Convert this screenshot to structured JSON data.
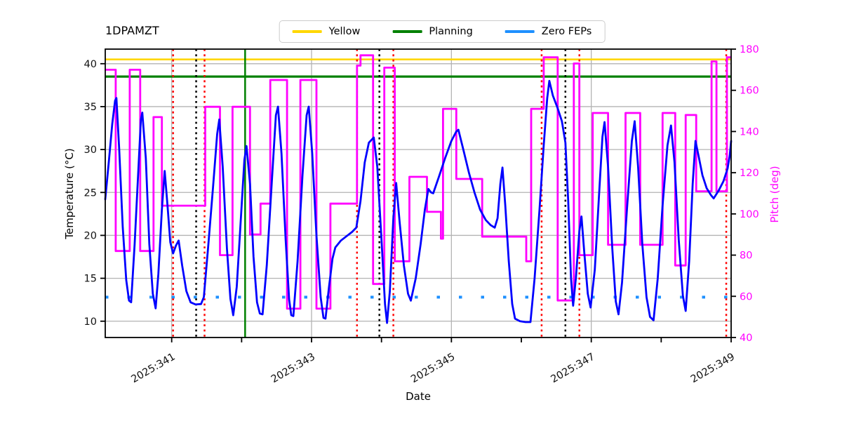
{
  "chart_data": {
    "type": "line",
    "title": "1DPAMZT",
    "xlabel": "Date",
    "ylabel_left": "Temperature (°C)",
    "ylabel_right": "Pitch (deg)",
    "xlim": [
      340.05,
      349.0
    ],
    "ylim_left": [
      8.1,
      41.7
    ],
    "ylim_right": [
      40,
      180
    ],
    "grid": true,
    "colors": {
      "grid": "#b3b3b3",
      "spine": "#000000",
      "tick_label_left": "#111111",
      "tick_label_right": "#ff00ff",
      "temperature": "#0000ff",
      "pitch": "#ff00ff",
      "yellow_limit": "#ffd700",
      "planning_limit": "#008000",
      "zero_feps": "#1e90ff",
      "red_event": "#ff0000",
      "black_event": "#000000",
      "green_event": "#008000"
    },
    "x_ticks_major": [
      {
        "value": 341,
        "label": "2025:341"
      },
      {
        "value": 343,
        "label": "2025:343"
      },
      {
        "value": 345,
        "label": "2025:345"
      },
      {
        "value": 347,
        "label": "2025:347"
      },
      {
        "value": 349,
        "label": "2025:349"
      }
    ],
    "x_ticks_minor": [
      342,
      344,
      346,
      348
    ],
    "x_grid": [
      341,
      343,
      345,
      347,
      349
    ],
    "y_ticks_left": [
      10,
      15,
      20,
      25,
      30,
      35,
      40
    ],
    "y_ticks_right": [
      40,
      60,
      80,
      100,
      120,
      140,
      160,
      180
    ],
    "legend": {
      "items": [
        {
          "label": "Yellow",
          "color": "#ffd700"
        },
        {
          "label": "Planning",
          "color": "#008000"
        },
        {
          "label": "Zero FEPs",
          "color": "#1e90ff"
        }
      ]
    },
    "hlines": [
      {
        "name": "yellow-limit-line",
        "y": 40.5,
        "color": "#ffd700",
        "width": 2.6,
        "dash": ""
      },
      {
        "name": "planning-limit-line",
        "y": 38.5,
        "color": "#008000",
        "width": 3.2,
        "dash": ""
      },
      {
        "name": "zero-feps-line",
        "y": 12.8,
        "color": "#1e90ff",
        "width": 4,
        "dash": "4.5 27"
      }
    ],
    "vlines": [
      {
        "name": "red-event-vline",
        "x": 341.02,
        "color": "#ff0000",
        "style": "dotted"
      },
      {
        "name": "black-event-vline",
        "x": 341.35,
        "color": "#000000",
        "style": "dotted"
      },
      {
        "name": "red-event-vline",
        "x": 341.47,
        "color": "#ff0000",
        "style": "dotted"
      },
      {
        "name": "green-event-vline",
        "x": 342.05,
        "color": "#008000",
        "style": "solid"
      },
      {
        "name": "red-event-vline",
        "x": 343.65,
        "color": "#ff0000",
        "style": "dotted"
      },
      {
        "name": "black-event-vline",
        "x": 343.97,
        "color": "#000000",
        "style": "dotted"
      },
      {
        "name": "red-event-vline",
        "x": 344.17,
        "color": "#ff0000",
        "style": "dotted"
      },
      {
        "name": "red-event-vline",
        "x": 346.29,
        "color": "#ff0000",
        "style": "dotted"
      },
      {
        "name": "black-event-vline",
        "x": 346.63,
        "color": "#000000",
        "style": "dotted"
      },
      {
        "name": "red-event-vline",
        "x": 346.83,
        "color": "#ff0000",
        "style": "dotted"
      },
      {
        "name": "red-event-vline",
        "x": 348.93,
        "color": "#ff0000",
        "style": "dotted"
      }
    ],
    "series": {
      "temperature": {
        "name": "1DPAMZT temperature",
        "color": "#0000ff",
        "width": 2.8,
        "points": [
          [
            340.05,
            24.2
          ],
          [
            340.1,
            28.5
          ],
          [
            340.15,
            33.0
          ],
          [
            340.19,
            35.7
          ],
          [
            340.21,
            36.0
          ],
          [
            340.25,
            30.0
          ],
          [
            340.3,
            21.0
          ],
          [
            340.35,
            14.8
          ],
          [
            340.39,
            12.4
          ],
          [
            340.42,
            12.2
          ],
          [
            340.47,
            19.0
          ],
          [
            340.52,
            27.0
          ],
          [
            340.56,
            33.5
          ],
          [
            340.58,
            34.3
          ],
          [
            340.63,
            29.0
          ],
          [
            340.68,
            19.0
          ],
          [
            340.73,
            13.2
          ],
          [
            340.77,
            11.5
          ],
          [
            340.81,
            15.5
          ],
          [
            340.86,
            23.0
          ],
          [
            340.9,
            27.5
          ],
          [
            340.94,
            23.5
          ],
          [
            340.98,
            19.2
          ],
          [
            341.02,
            17.9
          ],
          [
            341.06,
            18.8
          ],
          [
            341.1,
            19.4
          ],
          [
            341.15,
            16.5
          ],
          [
            341.21,
            13.5
          ],
          [
            341.27,
            12.2
          ],
          [
            341.34,
            11.95
          ],
          [
            341.42,
            12.0
          ],
          [
            341.46,
            12.8
          ],
          [
            341.52,
            18.5
          ],
          [
            341.59,
            25.5
          ],
          [
            341.65,
            31.8
          ],
          [
            341.68,
            33.5
          ],
          [
            341.73,
            28.0
          ],
          [
            341.79,
            18.5
          ],
          [
            341.84,
            12.6
          ],
          [
            341.88,
            10.7
          ],
          [
            341.93,
            14.0
          ],
          [
            341.99,
            22.0
          ],
          [
            342.04,
            28.8
          ],
          [
            342.07,
            30.4
          ],
          [
            342.12,
            26.0
          ],
          [
            342.17,
            17.5
          ],
          [
            342.22,
            12.2
          ],
          [
            342.26,
            10.9
          ],
          [
            342.3,
            10.8
          ],
          [
            342.36,
            16.5
          ],
          [
            342.43,
            26.0
          ],
          [
            342.49,
            34.0
          ],
          [
            342.52,
            35.0
          ],
          [
            342.57,
            29.5
          ],
          [
            342.63,
            19.5
          ],
          [
            342.68,
            12.5
          ],
          [
            342.71,
            10.7
          ],
          [
            342.74,
            10.6
          ],
          [
            342.8,
            17.0
          ],
          [
            342.87,
            27.0
          ],
          [
            342.93,
            34.0
          ],
          [
            342.96,
            35.0
          ],
          [
            343.01,
            29.5
          ],
          [
            343.07,
            20.0
          ],
          [
            343.13,
            12.8
          ],
          [
            343.17,
            10.4
          ],
          [
            343.2,
            10.3
          ],
          [
            343.25,
            14.0
          ],
          [
            343.3,
            17.3
          ],
          [
            343.34,
            18.6
          ],
          [
            343.42,
            19.4
          ],
          [
            343.5,
            19.9
          ],
          [
            343.58,
            20.4
          ],
          [
            343.64,
            20.9
          ],
          [
            343.7,
            24.0
          ],
          [
            343.76,
            28.5
          ],
          [
            343.82,
            30.8
          ],
          [
            343.89,
            31.4
          ],
          [
            343.94,
            28.0
          ],
          [
            344.0,
            19.5
          ],
          [
            344.05,
            12.0
          ],
          [
            344.08,
            9.8
          ],
          [
            344.12,
            13.5
          ],
          [
            344.17,
            22.0
          ],
          [
            344.21,
            26.1
          ],
          [
            344.26,
            21.5
          ],
          [
            344.32,
            16.5
          ],
          [
            344.38,
            13.2
          ],
          [
            344.42,
            12.4
          ],
          [
            344.49,
            15.0
          ],
          [
            344.56,
            19.0
          ],
          [
            344.62,
            23.0
          ],
          [
            344.67,
            25.4
          ],
          [
            344.71,
            25.0
          ],
          [
            344.74,
            24.9
          ],
          [
            344.82,
            26.8
          ],
          [
            344.91,
            29.0
          ],
          [
            345.0,
            31.0
          ],
          [
            345.07,
            32.1
          ],
          [
            345.1,
            32.3
          ],
          [
            345.17,
            30.0
          ],
          [
            345.25,
            27.3
          ],
          [
            345.33,
            25.0
          ],
          [
            345.41,
            23.0
          ],
          [
            345.49,
            21.8
          ],
          [
            345.56,
            21.2
          ],
          [
            345.62,
            20.9
          ],
          [
            345.66,
            22.0
          ],
          [
            345.7,
            26.0
          ],
          [
            345.73,
            27.9
          ],
          [
            345.77,
            23.5
          ],
          [
            345.82,
            17.0
          ],
          [
            345.87,
            12.0
          ],
          [
            345.91,
            10.3
          ],
          [
            345.98,
            10.0
          ],
          [
            346.06,
            9.9
          ],
          [
            346.13,
            9.9
          ],
          [
            346.19,
            15.0
          ],
          [
            346.26,
            23.0
          ],
          [
            346.32,
            30.5
          ],
          [
            346.37,
            36.0
          ],
          [
            346.4,
            38.0
          ],
          [
            346.45,
            36.3
          ],
          [
            346.52,
            34.8
          ],
          [
            346.58,
            33.3
          ],
          [
            346.63,
            30.8
          ],
          [
            346.67,
            24.0
          ],
          [
            346.71,
            15.0
          ],
          [
            346.74,
            11.8
          ],
          [
            346.78,
            15.0
          ],
          [
            346.83,
            20.5
          ],
          [
            346.86,
            22.2
          ],
          [
            346.9,
            18.0
          ],
          [
            346.95,
            13.2
          ],
          [
            346.99,
            11.6
          ],
          [
            347.05,
            16.0
          ],
          [
            347.11,
            24.5
          ],
          [
            347.16,
            31.5
          ],
          [
            347.19,
            33.2
          ],
          [
            347.24,
            28.0
          ],
          [
            347.3,
            18.5
          ],
          [
            347.35,
            12.3
          ],
          [
            347.39,
            10.8
          ],
          [
            347.44,
            14.5
          ],
          [
            347.51,
            23.0
          ],
          [
            347.58,
            31.0
          ],
          [
            347.62,
            33.3
          ],
          [
            347.67,
            28.0
          ],
          [
            347.73,
            19.0
          ],
          [
            347.79,
            12.8
          ],
          [
            347.84,
            10.5
          ],
          [
            347.89,
            10.1
          ],
          [
            347.95,
            15.0
          ],
          [
            348.02,
            23.5
          ],
          [
            348.09,
            30.5
          ],
          [
            348.14,
            32.8
          ],
          [
            348.19,
            28.5
          ],
          [
            348.25,
            19.5
          ],
          [
            348.31,
            13.0
          ],
          [
            348.35,
            11.2
          ],
          [
            348.4,
            17.0
          ],
          [
            348.45,
            26.0
          ],
          [
            348.49,
            31.0
          ],
          [
            348.54,
            29.0
          ],
          [
            348.59,
            27.0
          ],
          [
            348.65,
            25.5
          ],
          [
            348.71,
            24.7
          ],
          [
            348.75,
            24.3
          ],
          [
            348.82,
            25.2
          ],
          [
            348.89,
            26.3
          ],
          [
            348.95,
            27.8
          ],
          [
            348.98,
            29.3
          ],
          [
            349.0,
            31.0
          ]
        ]
      },
      "pitch": {
        "name": "pitch",
        "color": "#ff00ff",
        "width": 2.8,
        "steps": [
          [
            340.05,
            340.2,
            170
          ],
          [
            340.2,
            340.4,
            82
          ],
          [
            340.4,
            340.55,
            170
          ],
          [
            340.55,
            340.74,
            82
          ],
          [
            340.74,
            340.86,
            147
          ],
          [
            340.86,
            341.48,
            104
          ],
          [
            341.48,
            341.69,
            152
          ],
          [
            341.69,
            341.87,
            80
          ],
          [
            341.87,
            342.12,
            152
          ],
          [
            342.12,
            342.27,
            90
          ],
          [
            342.27,
            342.41,
            105
          ],
          [
            342.41,
            342.65,
            165
          ],
          [
            342.65,
            342.84,
            54
          ],
          [
            342.84,
            343.07,
            165
          ],
          [
            343.07,
            343.27,
            54
          ],
          [
            343.27,
            343.65,
            105
          ],
          [
            343.65,
            343.7,
            172
          ],
          [
            343.7,
            343.88,
            177
          ],
          [
            343.88,
            344.04,
            66
          ],
          [
            344.04,
            344.19,
            171
          ],
          [
            344.19,
            344.4,
            77
          ],
          [
            344.4,
            344.65,
            118
          ],
          [
            344.65,
            344.85,
            101
          ],
          [
            344.85,
            344.88,
            88
          ],
          [
            344.88,
            345.07,
            151
          ],
          [
            345.07,
            345.44,
            117
          ],
          [
            345.44,
            346.07,
            89
          ],
          [
            346.07,
            346.14,
            77
          ],
          [
            346.14,
            346.32,
            151
          ],
          [
            346.32,
            346.52,
            176
          ],
          [
            346.52,
            346.75,
            58
          ],
          [
            346.75,
            346.83,
            173
          ],
          [
            346.83,
            347.02,
            80
          ],
          [
            347.02,
            347.24,
            149
          ],
          [
            347.24,
            347.49,
            85
          ],
          [
            347.49,
            347.7,
            149
          ],
          [
            347.7,
            348.02,
            85
          ],
          [
            348.02,
            348.2,
            149
          ],
          [
            348.2,
            348.35,
            75
          ],
          [
            348.35,
            348.5,
            148
          ],
          [
            348.5,
            348.72,
            111
          ],
          [
            348.72,
            348.79,
            174
          ],
          [
            348.79,
            348.94,
            111
          ],
          [
            348.94,
            349.0,
            176
          ]
        ]
      }
    }
  }
}
